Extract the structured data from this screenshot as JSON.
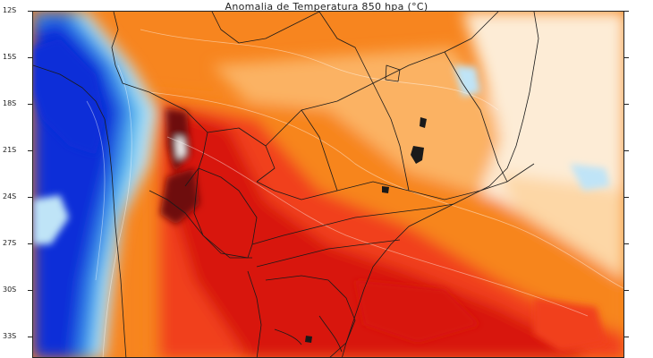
{
  "title": "Anomalia de Temperatura 850 hpa (°C)",
  "latitudes": [
    "12S",
    "15S",
    "18S",
    "21S",
    "24S",
    "27S",
    "30S",
    "33S"
  ],
  "colors": {
    "deep_red": "#6e0d0d",
    "red": "#d8150f",
    "red_orange": "#f1401a",
    "orange": "#f7851f",
    "light_orange": "#fbb263",
    "peach": "#fdd7a6",
    "pale": "#fdecd6",
    "white": "#ffffff",
    "light_blue": "#bfe4f7",
    "sky_blue": "#63c3f0",
    "blue": "#2f7be6",
    "deep_blue": "#0b2fd8",
    "border": "#1a1a1a"
  }
}
